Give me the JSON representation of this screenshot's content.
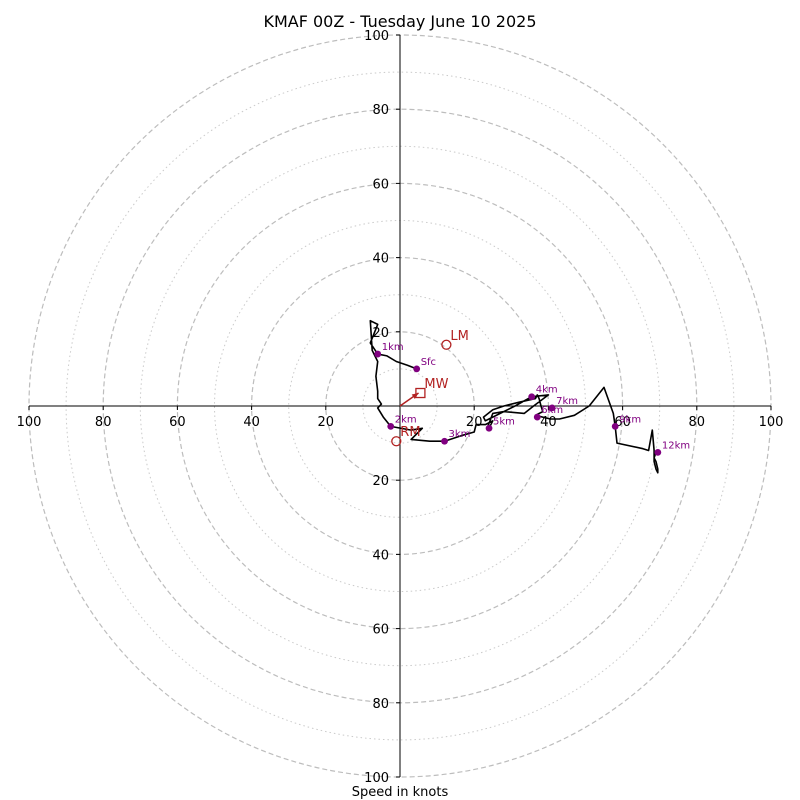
{
  "chart_data": {
    "type": "hodograph",
    "title": "KMAF 00Z - Tuesday June 10 2025",
    "xlabel": "Speed in knots",
    "axis_range": [
      -100,
      100
    ],
    "ring_major": [
      20,
      40,
      60,
      80,
      100
    ],
    "ring_minor": [
      10,
      30,
      50,
      70,
      90
    ],
    "tick_labels": {
      "x_left": [
        "100",
        "80",
        "60",
        "40",
        "20"
      ],
      "x_right": [
        "20",
        "40",
        "60",
        "80",
        "100"
      ],
      "y_top": [
        "100",
        "80",
        "60",
        "40",
        "20"
      ],
      "y_bottom": [
        "20",
        "40",
        "60",
        "80",
        "100"
      ]
    },
    "tick_values": [
      100,
      80,
      60,
      40,
      20
    ],
    "trace": [
      [
        4.5,
        10.0
      ],
      [
        2.0,
        11.0
      ],
      [
        -1.0,
        12.0
      ],
      [
        -3.5,
        13.5
      ],
      [
        -6.0,
        14.0
      ],
      [
        -8.0,
        17.0
      ],
      [
        -6.0,
        22.0
      ],
      [
        -8.0,
        23.0
      ],
      [
        -7.5,
        15.0
      ],
      [
        -6.0,
        12.0
      ],
      [
        -6.5,
        8.0
      ],
      [
        -6.0,
        4.0
      ],
      [
        -6.0,
        2.0
      ],
      [
        -5.0,
        0.5
      ],
      [
        -6.0,
        -0.5
      ],
      [
        -4.5,
        -3.0
      ],
      [
        -2.5,
        -5.5
      ],
      [
        3.0,
        -6.5
      ],
      [
        6.0,
        -6.0
      ],
      [
        3.0,
        -9.0
      ],
      [
        8.0,
        -9.5
      ],
      [
        12.0,
        -9.5
      ],
      [
        16.5,
        -8.0
      ],
      [
        20.0,
        -7.0
      ],
      [
        20.5,
        -5.0
      ],
      [
        23.0,
        -5.0
      ],
      [
        25.0,
        -4.0
      ],
      [
        24.0,
        -6.0
      ],
      [
        23.5,
        -6.0
      ],
      [
        25.0,
        -2.0
      ],
      [
        28.0,
        -1.5
      ],
      [
        33.5,
        -2.0
      ],
      [
        36.0,
        0.0
      ],
      [
        40.0,
        3.0
      ],
      [
        35.5,
        2.5
      ],
      [
        31.0,
        0.0
      ],
      [
        24.0,
        -3.5
      ],
      [
        23.0,
        -4.0
      ],
      [
        22.5,
        -3.0
      ],
      [
        25.0,
        -1.0
      ],
      [
        28.0,
        0.0
      ],
      [
        32.0,
        1.0
      ],
      [
        36.5,
        2.0
      ],
      [
        37.0,
        3.0
      ],
      [
        37.5,
        2.0
      ],
      [
        38.0,
        0.0
      ],
      [
        38.5,
        -1.5
      ],
      [
        36.5,
        -2.5
      ],
      [
        40.5,
        -3.5
      ],
      [
        43.0,
        -3.5
      ],
      [
        47.0,
        -2.5
      ],
      [
        51.0,
        0.0
      ],
      [
        55.0,
        5.0
      ],
      [
        57.5,
        -2.0
      ],
      [
        58.0,
        -5.5
      ],
      [
        58.5,
        -10.0
      ],
      [
        65.5,
        -11.5
      ],
      [
        67.0,
        -12.0
      ],
      [
        68.0,
        -6.5
      ],
      [
        68.5,
        -12.0
      ],
      [
        68.5,
        -15.0
      ],
      [
        69.0,
        -17.0
      ],
      [
        69.5,
        -18.0
      ],
      [
        69.5,
        -17.0
      ],
      [
        69.0,
        -15.0
      ],
      [
        68.5,
        -14.0
      ],
      [
        69.0,
        -12.5
      ],
      [
        70.0,
        -12.5
      ]
    ],
    "height_markers": [
      {
        "label": "Sfc",
        "u": 4.5,
        "v": 10.0
      },
      {
        "label": "1km",
        "u": -6.0,
        "v": 14.0
      },
      {
        "label": "2km",
        "u": -2.5,
        "v": -5.5
      },
      {
        "label": "3km",
        "u": 12.0,
        "v": -9.5
      },
      {
        "label": "4km",
        "u": 35.5,
        "v": 2.5
      },
      {
        "label": "5km",
        "u": 24.0,
        "v": -6.0
      },
      {
        "label": "6km",
        "u": 37.0,
        "v": -3.0
      },
      {
        "label": "7km",
        "u": 41.0,
        "v": -0.5
      },
      {
        "label": "9km",
        "u": 58.0,
        "v": -5.5
      },
      {
        "label": "12km",
        "u": 69.5,
        "v": -12.5
      }
    ],
    "storm_motion": [
      {
        "label": "LM",
        "u": 12.5,
        "v": 16.5,
        "marker": "circle"
      },
      {
        "label": "MW",
        "u": 5.5,
        "v": 3.5,
        "marker": "square"
      },
      {
        "label": "RM",
        "u": -1.0,
        "v": -9.5,
        "marker": "circle"
      }
    ],
    "shear_vector": {
      "from": [
        0,
        0
      ],
      "to": [
        5.0,
        3.5
      ]
    },
    "colors": {
      "trace": "#000000",
      "markers": "#800080",
      "motion": "#b22222",
      "grid": "#bdbdbd",
      "axes": "#000000"
    }
  }
}
